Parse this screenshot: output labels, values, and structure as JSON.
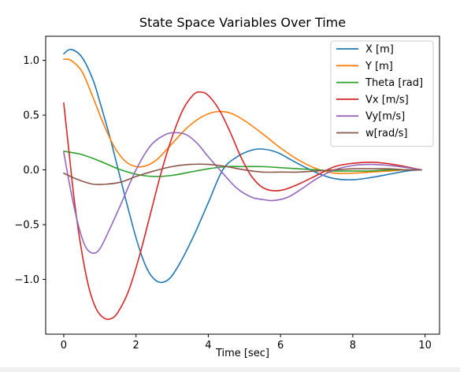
{
  "chart_data": {
    "type": "line",
    "title": "State Space Variables Over Time",
    "xlabel": "Time [sec]",
    "ylabel": "",
    "xlim": [
      -0.5,
      10.4
    ],
    "ylim": [
      -1.5,
      1.22
    ],
    "xticks": [
      0,
      2,
      4,
      6,
      8,
      10
    ],
    "yticks": [
      -1.0,
      -0.5,
      0.0,
      0.5,
      1.0
    ],
    "xtick_labels": [
      "0",
      "2",
      "4",
      "6",
      "8",
      "10"
    ],
    "ytick_labels": [
      "−1.0",
      "−0.5",
      "0.0",
      "0.5",
      "1.0"
    ],
    "grid": false,
    "legend_position": "top-right",
    "series": [
      {
        "name": "X [m]",
        "color": "#1f77b4",
        "x": [
          0,
          0.2,
          0.5,
          0.8,
          1.0,
          1.3,
          1.6,
          2.0,
          2.3,
          2.6,
          2.9,
          3.2,
          3.6,
          4.0,
          4.4,
          4.8,
          5.2,
          5.5,
          5.9,
          6.3,
          6.7,
          7.1,
          7.5,
          8.0,
          8.5,
          9.0,
          9.5,
          9.9
        ],
        "y": [
          1.06,
          1.1,
          1.03,
          0.83,
          0.62,
          0.27,
          -0.12,
          -0.62,
          -0.9,
          -1.02,
          -1.0,
          -0.86,
          -0.6,
          -0.3,
          0.0,
          0.12,
          0.18,
          0.19,
          0.16,
          0.09,
          0.02,
          -0.04,
          -0.08,
          -0.09,
          -0.07,
          -0.04,
          -0.01,
          0.0
        ]
      },
      {
        "name": "Y [m]",
        "color": "#ff7f0e",
        "x": [
          0,
          0.2,
          0.5,
          0.8,
          1.1,
          1.4,
          1.7,
          2.0,
          2.3,
          2.6,
          3.0,
          3.4,
          3.8,
          4.2,
          4.6,
          5.0,
          5.5,
          6.0,
          6.5,
          7.0,
          7.5,
          8.0,
          8.5,
          9.0,
          9.5,
          9.9
        ],
        "y": [
          1.01,
          1.0,
          0.9,
          0.67,
          0.42,
          0.21,
          0.08,
          0.03,
          0.04,
          0.1,
          0.24,
          0.38,
          0.48,
          0.53,
          0.52,
          0.45,
          0.33,
          0.2,
          0.09,
          0.01,
          -0.03,
          -0.03,
          -0.02,
          -0.01,
          0.0,
          0.0
        ]
      },
      {
        "name": "Theta [rad]",
        "color": "#2ca02c",
        "x": [
          0,
          0.5,
          1.0,
          1.5,
          2.0,
          2.5,
          3.0,
          3.5,
          4.0,
          4.5,
          5.0,
          5.5,
          6.0,
          6.5,
          7.0,
          7.5,
          8.0,
          8.5,
          9.0,
          9.5,
          9.9
        ],
        "y": [
          0.17,
          0.14,
          0.08,
          0.01,
          -0.04,
          -0.06,
          -0.05,
          -0.02,
          0.01,
          0.03,
          0.03,
          0.03,
          0.02,
          0.01,
          0.0,
          -0.01,
          -0.01,
          -0.01,
          0.0,
          0.0,
          0.0
        ]
      },
      {
        "name": "Vx [m/s]",
        "color": "#d62728",
        "x": [
          0,
          0.15,
          0.3,
          0.5,
          0.7,
          0.9,
          1.1,
          1.3,
          1.5,
          1.8,
          2.1,
          2.4,
          2.7,
          3.0,
          3.3,
          3.6,
          3.8,
          4.0,
          4.3,
          4.6,
          4.9,
          5.2,
          5.5,
          5.8,
          6.1,
          6.5,
          7.0,
          7.5,
          8.0,
          8.5,
          8.9,
          9.3,
          9.6,
          9.9
        ],
        "y": [
          0.61,
          0.15,
          -0.3,
          -0.75,
          -1.08,
          -1.27,
          -1.35,
          -1.36,
          -1.3,
          -1.1,
          -0.78,
          -0.4,
          -0.02,
          0.3,
          0.55,
          0.69,
          0.71,
          0.68,
          0.55,
          0.35,
          0.12,
          -0.06,
          -0.16,
          -0.19,
          -0.18,
          -0.13,
          -0.05,
          0.03,
          0.06,
          0.07,
          0.06,
          0.04,
          0.02,
          0.0
        ]
      },
      {
        "name": "Vy[m/s]",
        "color": "#9467bd",
        "x": [
          0,
          0.2,
          0.4,
          0.6,
          0.8,
          1.0,
          1.3,
          1.6,
          2.0,
          2.4,
          2.8,
          3.1,
          3.4,
          3.7,
          4.0,
          4.4,
          4.8,
          5.2,
          5.5,
          5.8,
          6.2,
          6.6,
          7.0,
          7.5,
          8.0,
          8.5,
          9.0,
          9.5,
          9.9
        ],
        "y": [
          0.16,
          -0.2,
          -0.5,
          -0.7,
          -0.76,
          -0.72,
          -0.52,
          -0.3,
          0.0,
          0.22,
          0.32,
          0.34,
          0.32,
          0.24,
          0.12,
          -0.03,
          -0.17,
          -0.25,
          -0.27,
          -0.28,
          -0.25,
          -0.17,
          -0.08,
          0.0,
          0.04,
          0.05,
          0.04,
          0.02,
          0.0
        ]
      },
      {
        "name": "w[rad/s]",
        "color": "#8c564b",
        "x": [
          0,
          0.4,
          0.8,
          1.2,
          1.6,
          2.0,
          2.5,
          3.0,
          3.5,
          4.0,
          4.5,
          5.0,
          5.5,
          6.0,
          6.5,
          7.0,
          7.5,
          8.0,
          8.5,
          9.0,
          9.5,
          9.9
        ],
        "y": [
          -0.03,
          -0.09,
          -0.13,
          -0.13,
          -0.11,
          -0.06,
          -0.01,
          0.03,
          0.05,
          0.05,
          0.03,
          0.0,
          -0.02,
          -0.02,
          -0.02,
          -0.01,
          0.0,
          0.01,
          0.01,
          0.01,
          0.0,
          0.0
        ]
      }
    ]
  }
}
